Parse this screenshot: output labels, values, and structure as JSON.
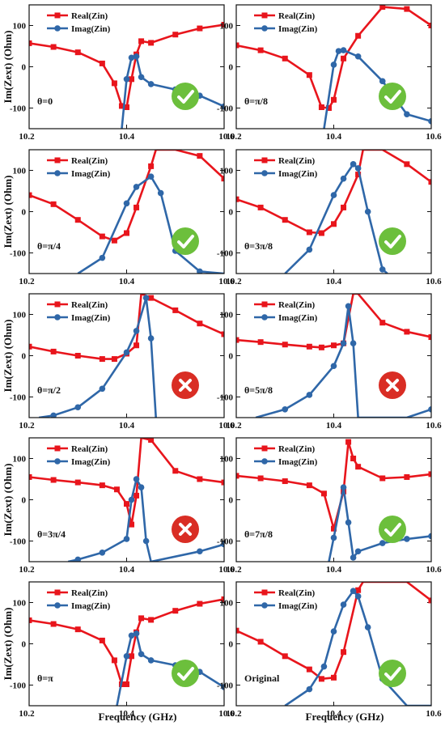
{
  "colors": {
    "real": "#e8151c",
    "imag": "#2f67a8",
    "check": "#6cbf3c",
    "cross": "#d92d24"
  },
  "figure": {
    "ylabel": "Im(Zext) (Ohm)",
    "xlabel": "Frequency (GHz)",
    "legend": {
      "real": "Real(Zin)",
      "imag": "Imag(Zin)"
    },
    "x_ticks": [
      "10.2",
      "10.4",
      "10.6"
    ],
    "y_ticks": [
      "100",
      "0",
      "-100"
    ]
  },
  "chart_data": [
    {
      "type": "line",
      "label": "θ=0",
      "status": "check",
      "xlim": [
        10.2,
        10.6
      ],
      "ylim": [
        -150,
        150
      ],
      "series": [
        {
          "name": "Real(Zin)",
          "x": [
            10.2,
            10.25,
            10.3,
            10.35,
            10.375,
            10.39,
            10.4,
            10.41,
            10.42,
            10.43,
            10.45,
            10.5,
            10.55,
            10.6
          ],
          "y": [
            57,
            48,
            35,
            8,
            -40,
            -95,
            -98,
            -30,
            30,
            62,
            58,
            78,
            93,
            102
          ]
        },
        {
          "name": "Imag(Zin)",
          "x": [
            10.39,
            10.4,
            10.41,
            10.42,
            10.43,
            10.45,
            10.5,
            10.55,
            10.6
          ],
          "y": [
            -150,
            -30,
            22,
            25,
            -25,
            -42,
            -55,
            -70,
            -96
          ]
        }
      ]
    },
    {
      "type": "line",
      "label": "θ=π/8",
      "status": "check",
      "xlim": [
        10.2,
        10.6
      ],
      "ylim": [
        -150,
        150
      ],
      "series": [
        {
          "name": "Real(Zin)",
          "x": [
            10.2,
            10.25,
            10.3,
            10.35,
            10.375,
            10.39,
            10.4,
            10.42,
            10.45,
            10.5,
            10.55,
            10.6
          ],
          "y": [
            52,
            40,
            20,
            -20,
            -98,
            -100,
            -80,
            20,
            75,
            145,
            140,
            100
          ]
        },
        {
          "name": "Imag(Zin)",
          "x": [
            10.38,
            10.4,
            10.41,
            10.42,
            10.45,
            10.5,
            10.55,
            10.6
          ],
          "y": [
            -150,
            5,
            38,
            40,
            25,
            -35,
            -115,
            -132
          ]
        }
      ]
    },
    {
      "type": "line",
      "label": "θ=π/4",
      "status": "check",
      "xlim": [
        10.2,
        10.6
      ],
      "ylim": [
        -150,
        150
      ],
      "series": [
        {
          "name": "Real(Zin)",
          "x": [
            10.2,
            10.25,
            10.3,
            10.35,
            10.375,
            10.4,
            10.42,
            10.45,
            10.46,
            10.5,
            10.55,
            10.6
          ],
          "y": [
            40,
            18,
            -20,
            -60,
            -70,
            -52,
            10,
            110,
            150,
            150,
            135,
            80
          ]
        },
        {
          "name": "Imag(Zin)",
          "x": [
            10.3,
            10.35,
            10.4,
            10.42,
            10.45,
            10.47,
            10.5,
            10.55,
            10.6
          ],
          "y": [
            -150,
            -112,
            20,
            60,
            85,
            45,
            -95,
            -145,
            -150
          ]
        }
      ]
    },
    {
      "type": "line",
      "label": "θ=3π/8",
      "status": "check",
      "xlim": [
        10.2,
        10.6
      ],
      "ylim": [
        -150,
        150
      ],
      "series": [
        {
          "name": "Real(Zin)",
          "x": [
            10.2,
            10.25,
            10.3,
            10.35,
            10.375,
            10.4,
            10.42,
            10.45,
            10.46,
            10.5,
            10.55,
            10.6
          ],
          "y": [
            30,
            10,
            -20,
            -50,
            -52,
            -30,
            10,
            90,
            150,
            150,
            115,
            72
          ]
        },
        {
          "name": "Imag(Zin)",
          "x": [
            10.3,
            10.35,
            10.4,
            10.42,
            10.44,
            10.45,
            10.47,
            10.5,
            10.51
          ],
          "y": [
            -150,
            -92,
            40,
            80,
            115,
            105,
            0,
            -140,
            -150
          ]
        }
      ]
    },
    {
      "type": "line",
      "label": "θ=π/2",
      "status": "cross",
      "xlim": [
        10.2,
        10.6
      ],
      "ylim": [
        -150,
        150
      ],
      "series": [
        {
          "name": "Real(Zin)",
          "x": [
            10.2,
            10.25,
            10.3,
            10.35,
            10.375,
            10.4,
            10.42,
            10.43,
            10.45,
            10.5,
            10.55,
            10.6
          ],
          "y": [
            22,
            10,
            0,
            -8,
            -8,
            5,
            25,
            150,
            140,
            110,
            78,
            52
          ]
        },
        {
          "name": "Imag(Zin)",
          "x": [
            10.22,
            10.25,
            10.3,
            10.35,
            10.4,
            10.42,
            10.44,
            10.45,
            10.46
          ],
          "y": [
            -150,
            -145,
            -125,
            -80,
            8,
            60,
            140,
            42,
            -150
          ]
        }
      ]
    },
    {
      "type": "line",
      "label": "θ=5π/8",
      "status": "cross",
      "xlim": [
        10.2,
        10.6
      ],
      "ylim": [
        -150,
        150
      ],
      "series": [
        {
          "name": "Real(Zin)",
          "x": [
            10.2,
            10.25,
            10.3,
            10.35,
            10.375,
            10.4,
            10.42,
            10.44,
            10.45,
            10.5,
            10.55,
            10.6
          ],
          "y": [
            38,
            33,
            27,
            22,
            20,
            25,
            30,
            150,
            150,
            80,
            58,
            45
          ]
        },
        {
          "name": "Imag(Zin)",
          "x": [
            10.24,
            10.3,
            10.35,
            10.4,
            10.42,
            10.43,
            10.44,
            10.45,
            10.55,
            10.6
          ],
          "y": [
            -150,
            -130,
            -95,
            -25,
            30,
            120,
            30,
            -150,
            -150,
            -130
          ]
        }
      ]
    },
    {
      "type": "line",
      "label": "θ=3π/4",
      "status": "cross",
      "xlim": [
        10.2,
        10.6
      ],
      "ylim": [
        -150,
        150
      ],
      "series": [
        {
          "name": "Real(Zin)",
          "x": [
            10.2,
            10.25,
            10.3,
            10.35,
            10.38,
            10.4,
            10.41,
            10.42,
            10.43,
            10.45,
            10.5,
            10.55,
            10.6
          ],
          "y": [
            55,
            48,
            42,
            35,
            25,
            -10,
            -60,
            10,
            150,
            145,
            70,
            50,
            42
          ]
        },
        {
          "name": "Imag(Zin)",
          "x": [
            10.28,
            10.3,
            10.35,
            10.4,
            10.41,
            10.42,
            10.43,
            10.44,
            10.45,
            10.55,
            10.6
          ],
          "y": [
            -150,
            -145,
            -128,
            -95,
            0,
            50,
            30,
            -100,
            -150,
            -125,
            -108
          ]
        }
      ]
    },
    {
      "type": "line",
      "label": "θ=7π/8",
      "status": "check",
      "xlim": [
        10.2,
        10.6
      ],
      "ylim": [
        -150,
        150
      ],
      "series": [
        {
          "name": "Real(Zin)",
          "x": [
            10.2,
            10.25,
            10.3,
            10.35,
            10.38,
            10.4,
            10.42,
            10.43,
            10.44,
            10.45,
            10.5,
            10.55,
            10.6
          ],
          "y": [
            58,
            52,
            45,
            35,
            15,
            -70,
            20,
            140,
            100,
            80,
            52,
            55,
            62
          ]
        },
        {
          "name": "Imag(Zin)",
          "x": [
            10.39,
            10.4,
            10.42,
            10.43,
            10.44,
            10.45,
            10.5,
            10.55,
            10.6
          ],
          "y": [
            -150,
            -92,
            30,
            -55,
            -140,
            -125,
            -105,
            -95,
            -88
          ]
        }
      ]
    },
    {
      "type": "line",
      "label": "θ=π",
      "status": "check",
      "xlim": [
        10.2,
        10.6
      ],
      "ylim": [
        -150,
        150
      ],
      "series": [
        {
          "name": "Real(Zin)",
          "x": [
            10.2,
            10.25,
            10.3,
            10.35,
            10.375,
            10.39,
            10.4,
            10.41,
            10.42,
            10.43,
            10.45,
            10.5,
            10.55,
            10.6
          ],
          "y": [
            57,
            48,
            35,
            8,
            -40,
            -98,
            -98,
            -30,
            28,
            62,
            58,
            80,
            97,
            108
          ]
        },
        {
          "name": "Imag(Zin)",
          "x": [
            10.38,
            10.4,
            10.41,
            10.42,
            10.43,
            10.45,
            10.5,
            10.55,
            10.6
          ],
          "y": [
            -150,
            -30,
            20,
            25,
            -25,
            -40,
            -52,
            -68,
            -105
          ]
        }
      ]
    },
    {
      "type": "line",
      "label": "Original",
      "status": "check",
      "xlim": [
        10.2,
        10.6
      ],
      "ylim": [
        -150,
        150
      ],
      "series": [
        {
          "name": "Real(Zin)",
          "x": [
            10.2,
            10.25,
            10.3,
            10.35,
            10.375,
            10.4,
            10.42,
            10.45,
            10.46,
            10.5,
            10.55,
            10.6
          ],
          "y": [
            32,
            5,
            -30,
            -62,
            -85,
            -82,
            -20,
            130,
            150,
            150,
            150,
            105
          ]
        },
        {
          "name": "Imag(Zin)",
          "x": [
            10.3,
            10.35,
            10.38,
            10.4,
            10.42,
            10.44,
            10.45,
            10.47,
            10.5,
            10.55,
            10.6
          ],
          "y": [
            -150,
            -110,
            -55,
            30,
            95,
            128,
            115,
            40,
            -85,
            -150,
            -150
          ]
        }
      ]
    }
  ]
}
